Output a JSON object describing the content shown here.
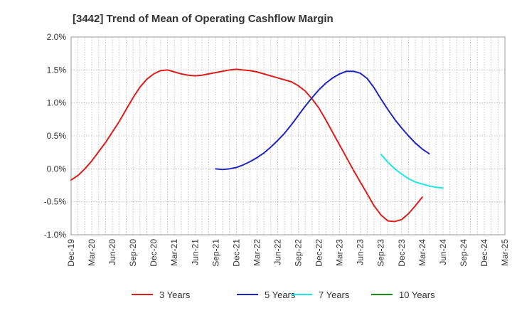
{
  "chart_data": {
    "type": "line",
    "title": "[3442]  Trend of Mean of Operating Cashflow Margin",
    "xlabel": "",
    "ylabel": "",
    "ylim": [
      -1.0,
      2.0
    ],
    "y_ticks": [
      "2.0%",
      "1.5%",
      "1.0%",
      "0.5%",
      "0.0%",
      "-0.5%",
      "-1.0%"
    ],
    "y_tick_values": [
      2.0,
      1.5,
      1.0,
      0.5,
      0.0,
      -0.5,
      -1.0
    ],
    "x_ticks": [
      "Dec-19",
      "Mar-20",
      "Jun-20",
      "Sep-20",
      "Dec-20",
      "Mar-21",
      "Jun-21",
      "Sep-21",
      "Dec-21",
      "Mar-22",
      "Jun-22",
      "Sep-22",
      "Dec-22",
      "Mar-23",
      "Jun-23",
      "Sep-23",
      "Dec-23",
      "Mar-24",
      "Jun-24",
      "Sep-24",
      "Dec-24",
      "Mar-25"
    ],
    "x_start": "Dec-19",
    "x_end": "Mar-25",
    "x_unit": "month",
    "grid": true,
    "legend_position": "bottom",
    "series": [
      {
        "name": "3 Years",
        "color": "#dd1c1c",
        "points": [
          [
            "Dec-19",
            -0.17
          ],
          [
            "Jan-20",
            -0.1
          ],
          [
            "Feb-20",
            0.0
          ],
          [
            "Mar-20",
            0.12
          ],
          [
            "Apr-20",
            0.26
          ],
          [
            "May-20",
            0.4
          ],
          [
            "Jun-20",
            0.56
          ],
          [
            "Jul-20",
            0.72
          ],
          [
            "Aug-20",
            0.9
          ],
          [
            "Sep-20",
            1.08
          ],
          [
            "Oct-20",
            1.24
          ],
          [
            "Nov-20",
            1.36
          ],
          [
            "Dec-20",
            1.44
          ],
          [
            "Jan-21",
            1.49
          ],
          [
            "Feb-21",
            1.5
          ],
          [
            "Mar-21",
            1.47
          ],
          [
            "Apr-21",
            1.44
          ],
          [
            "May-21",
            1.42
          ],
          [
            "Jun-21",
            1.41
          ],
          [
            "Jul-21",
            1.42
          ],
          [
            "Aug-21",
            1.44
          ],
          [
            "Sep-21",
            1.46
          ],
          [
            "Oct-21",
            1.48
          ],
          [
            "Nov-21",
            1.5
          ],
          [
            "Dec-21",
            1.51
          ],
          [
            "Jan-22",
            1.5
          ],
          [
            "Feb-22",
            1.49
          ],
          [
            "Mar-22",
            1.47
          ],
          [
            "Apr-22",
            1.44
          ],
          [
            "May-22",
            1.41
          ],
          [
            "Jun-22",
            1.38
          ],
          [
            "Jul-22",
            1.35
          ],
          [
            "Aug-22",
            1.32
          ],
          [
            "Sep-22",
            1.26
          ],
          [
            "Oct-22",
            1.18
          ],
          [
            "Nov-22",
            1.06
          ],
          [
            "Dec-22",
            0.92
          ],
          [
            "Jan-23",
            0.74
          ],
          [
            "Feb-23",
            0.55
          ],
          [
            "Mar-23",
            0.36
          ],
          [
            "Apr-23",
            0.17
          ],
          [
            "May-23",
            -0.02
          ],
          [
            "Jun-23",
            -0.2
          ],
          [
            "Jul-23",
            -0.38
          ],
          [
            "Aug-23",
            -0.56
          ],
          [
            "Sep-23",
            -0.7
          ],
          [
            "Oct-23",
            -0.79
          ],
          [
            "Nov-23",
            -0.8
          ],
          [
            "Dec-23",
            -0.77
          ],
          [
            "Jan-24",
            -0.68
          ],
          [
            "Feb-24",
            -0.56
          ],
          [
            "Mar-24",
            -0.43
          ]
        ]
      },
      {
        "name": "5 Years",
        "color": "#1f24c8",
        "points": [
          [
            "Sep-21",
            0.0
          ],
          [
            "Oct-21",
            -0.01
          ],
          [
            "Nov-21",
            0.0
          ],
          [
            "Dec-21",
            0.02
          ],
          [
            "Jan-22",
            0.06
          ],
          [
            "Feb-22",
            0.11
          ],
          [
            "Mar-22",
            0.17
          ],
          [
            "Apr-22",
            0.24
          ],
          [
            "May-22",
            0.33
          ],
          [
            "Jun-22",
            0.43
          ],
          [
            "Jul-22",
            0.54
          ],
          [
            "Aug-22",
            0.67
          ],
          [
            "Sep-22",
            0.81
          ],
          [
            "Oct-22",
            0.95
          ],
          [
            "Nov-22",
            1.08
          ],
          [
            "Dec-22",
            1.2
          ],
          [
            "Jan-23",
            1.3
          ],
          [
            "Feb-23",
            1.38
          ],
          [
            "Mar-23",
            1.44
          ],
          [
            "Apr-23",
            1.48
          ],
          [
            "May-23",
            1.48
          ],
          [
            "Jun-23",
            1.45
          ],
          [
            "Jul-23",
            1.37
          ],
          [
            "Aug-23",
            1.23
          ],
          [
            "Sep-23",
            1.06
          ],
          [
            "Oct-23",
            0.9
          ],
          [
            "Nov-23",
            0.75
          ],
          [
            "Dec-23",
            0.62
          ],
          [
            "Jan-24",
            0.5
          ],
          [
            "Feb-24",
            0.39
          ],
          [
            "Mar-24",
            0.3
          ],
          [
            "Apr-24",
            0.23
          ]
        ]
      },
      {
        "name": "7 Years",
        "color": "#1fe6e6",
        "points": [
          [
            "Sep-23",
            0.22
          ],
          [
            "Oct-23",
            0.1
          ],
          [
            "Nov-23",
            0.0
          ],
          [
            "Dec-23",
            -0.08
          ],
          [
            "Jan-24",
            -0.15
          ],
          [
            "Feb-24",
            -0.2
          ],
          [
            "Mar-24",
            -0.23
          ],
          [
            "Apr-24",
            -0.26
          ],
          [
            "May-24",
            -0.28
          ],
          [
            "Jun-24",
            -0.29
          ]
        ]
      },
      {
        "name": "10 Years",
        "color": "#1a8a1a",
        "points": []
      }
    ]
  }
}
